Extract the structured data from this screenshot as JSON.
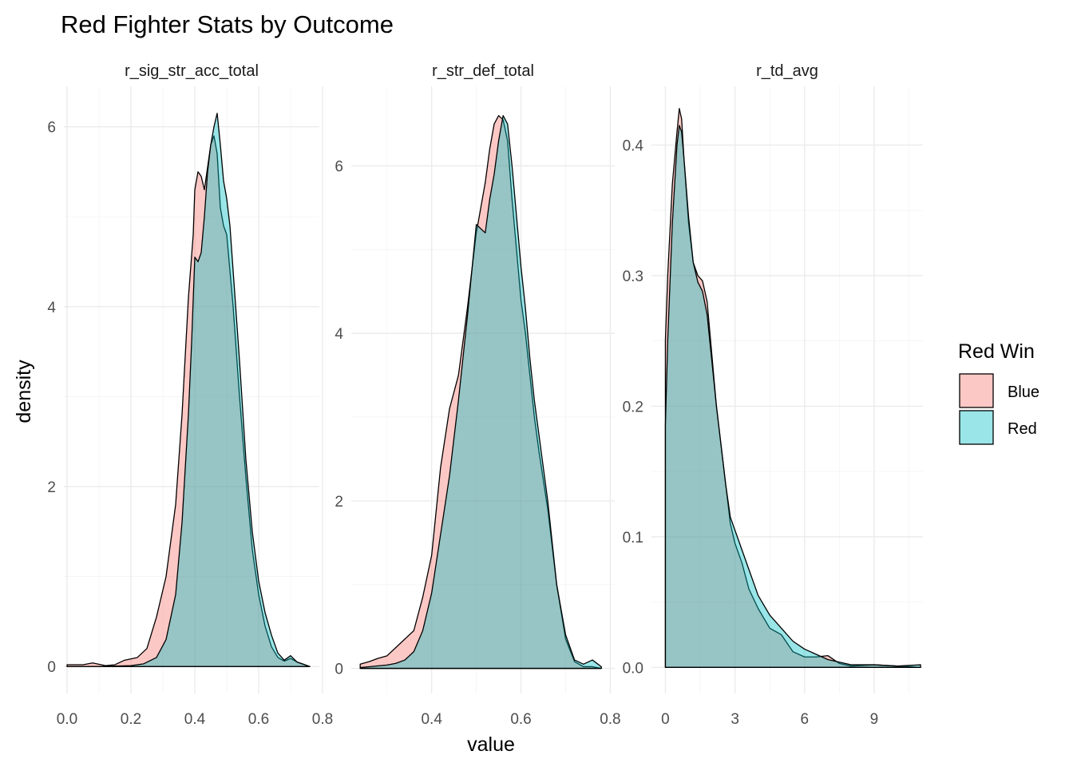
{
  "chart_data": {
    "type": "area",
    "subtype": "density",
    "title": "Red Fighter Stats by Outcome",
    "xlabel": "value",
    "ylabel": "density",
    "legend": {
      "title": "Red Win",
      "position": "right",
      "entries": [
        {
          "name": "Blue",
          "color": "#F8766D"
        },
        {
          "name": "Red",
          "color": "#00BFC4"
        }
      ]
    },
    "fill_alpha": 0.4,
    "grid": true,
    "panels": [
      {
        "strip": "r_sig_str_acc_total",
        "xlim": [
          -0.01,
          0.79
        ],
        "ylim": [
          -0.3,
          6.45
        ],
        "xticks": [
          0.0,
          0.2,
          0.4,
          0.6,
          0.8
        ],
        "xtick_labels": [
          "0.0",
          "0.2",
          "0.4",
          "0.6",
          "0.8"
        ],
        "yticks": [
          0,
          2,
          4,
          6
        ],
        "ytick_labels": [
          "0",
          "2",
          "4",
          "6"
        ],
        "series": [
          {
            "name": "Blue",
            "x": [
              0.0,
              0.05,
              0.08,
              0.12,
              0.15,
              0.18,
              0.22,
              0.25,
              0.28,
              0.31,
              0.34,
              0.36,
              0.38,
              0.395,
              0.4,
              0.41,
              0.42,
              0.43,
              0.44,
              0.45,
              0.46,
              0.47,
              0.48,
              0.49,
              0.5,
              0.52,
              0.54,
              0.56,
              0.58,
              0.6,
              0.62,
              0.64,
              0.66,
              0.68,
              0.7,
              0.72,
              0.76
            ],
            "y": [
              0.02,
              0.02,
              0.04,
              0.01,
              0.02,
              0.07,
              0.1,
              0.2,
              0.55,
              1.0,
              1.8,
              2.8,
              4.1,
              4.8,
              5.3,
              5.5,
              5.45,
              5.3,
              5.55,
              5.8,
              5.9,
              5.7,
              5.1,
              4.9,
              4.8,
              4.0,
              3.0,
              2.1,
              1.3,
              0.8,
              0.45,
              0.22,
              0.1,
              0.06,
              0.09,
              0.05,
              0.0
            ]
          },
          {
            "name": "Red",
            "x": [
              0.0,
              0.1,
              0.2,
              0.24,
              0.28,
              0.31,
              0.34,
              0.36,
              0.38,
              0.39,
              0.4,
              0.41,
              0.42,
              0.43,
              0.44,
              0.45,
              0.46,
              0.47,
              0.48,
              0.49,
              0.5,
              0.51,
              0.52,
              0.54,
              0.56,
              0.58,
              0.6,
              0.62,
              0.64,
              0.66,
              0.68,
              0.7,
              0.72,
              0.76
            ],
            "y": [
              0.0,
              0.0,
              0.01,
              0.03,
              0.1,
              0.3,
              0.8,
              1.6,
              2.8,
              3.6,
              4.55,
              4.5,
              4.6,
              5.0,
              5.5,
              5.8,
              6.0,
              6.15,
              5.8,
              5.4,
              5.2,
              4.9,
              4.4,
              3.4,
              2.3,
              1.5,
              0.95,
              0.6,
              0.35,
              0.15,
              0.07,
              0.12,
              0.05,
              0.0
            ]
          }
        ]
      },
      {
        "strip": "r_str_def_total",
        "xlim": [
          0.22,
          0.81
        ],
        "ylim": [
          -0.3,
          6.95
        ],
        "xticks": [
          0.4,
          0.6,
          0.8
        ],
        "xtick_labels": [
          "0.4",
          "0.6",
          "0.8"
        ],
        "yticks": [
          0,
          2,
          4,
          6
        ],
        "ytick_labels": [
          "0",
          "2",
          "4",
          "6"
        ],
        "series": [
          {
            "name": "Blue",
            "x": [
              0.24,
              0.26,
              0.28,
              0.3,
              0.32,
              0.34,
              0.36,
              0.38,
              0.4,
              0.42,
              0.44,
              0.46,
              0.48,
              0.5,
              0.52,
              0.53,
              0.54,
              0.55,
              0.56,
              0.57,
              0.58,
              0.59,
              0.6,
              0.61,
              0.62,
              0.63,
              0.64,
              0.66,
              0.68,
              0.7,
              0.72,
              0.74,
              0.76,
              0.78
            ],
            "y": [
              0.05,
              0.08,
              0.12,
              0.15,
              0.25,
              0.35,
              0.45,
              0.85,
              1.35,
              2.4,
              3.1,
              3.5,
              4.3,
              5.2,
              5.8,
              6.2,
              6.5,
              6.6,
              6.55,
              6.3,
              5.6,
              5.0,
              4.4,
              4.0,
              3.5,
              3.0,
              2.6,
              1.9,
              1.0,
              0.35,
              0.08,
              0.02,
              0.02,
              0.0
            ]
          },
          {
            "name": "Red",
            "x": [
              0.24,
              0.26,
              0.28,
              0.3,
              0.32,
              0.34,
              0.36,
              0.38,
              0.4,
              0.42,
              0.44,
              0.46,
              0.48,
              0.5,
              0.52,
              0.53,
              0.54,
              0.55,
              0.56,
              0.57,
              0.58,
              0.59,
              0.6,
              0.61,
              0.62,
              0.63,
              0.64,
              0.66,
              0.68,
              0.7,
              0.72,
              0.74,
              0.76,
              0.78
            ],
            "y": [
              0.01,
              0.02,
              0.03,
              0.04,
              0.06,
              0.1,
              0.2,
              0.45,
              0.9,
              1.6,
              2.3,
              3.2,
              4.2,
              5.3,
              5.2,
              5.6,
              5.9,
              6.3,
              6.6,
              6.5,
              6.0,
              5.4,
              4.8,
              4.3,
              3.7,
              3.2,
              2.8,
              2.0,
              1.0,
              0.4,
              0.1,
              0.05,
              0.1,
              0.02
            ]
          }
        ]
      },
      {
        "strip": "r_td_avg",
        "xlim": [
          -0.6,
          11.1
        ],
        "ylim": [
          -0.02,
          0.445
        ],
        "xticks": [
          0,
          3,
          6,
          9
        ],
        "xtick_labels": [
          "0",
          "3",
          "6",
          "9"
        ],
        "yticks": [
          0.0,
          0.1,
          0.2,
          0.3,
          0.4
        ],
        "ytick_labels": [
          "0.0",
          "0.1",
          "0.2",
          "0.3",
          "0.4"
        ],
        "series": [
          {
            "name": "Blue",
            "x": [
              0.0,
              0.1,
              0.3,
              0.5,
              0.6,
              0.7,
              0.8,
              1.0,
              1.2,
              1.4,
              1.6,
              1.8,
              2.0,
              2.2,
              2.4,
              2.6,
              2.8,
              3.0,
              3.3,
              3.6,
              4.0,
              4.5,
              5.0,
              5.5,
              6.0,
              6.5,
              7.0,
              7.5,
              8.0,
              9.0,
              10.0,
              11.0
            ],
            "y": [
              0.25,
              0.3,
              0.37,
              0.41,
              0.428,
              0.42,
              0.39,
              0.34,
              0.31,
              0.3,
              0.296,
              0.28,
              0.24,
              0.2,
              0.17,
              0.14,
              0.11,
              0.095,
              0.08,
              0.06,
              0.045,
              0.03,
              0.025,
              0.012,
              0.008,
              0.008,
              0.009,
              0.003,
              0.001,
              0.002,
              0.001,
              0.0
            ]
          },
          {
            "name": "Red",
            "x": [
              0.0,
              0.1,
              0.3,
              0.5,
              0.6,
              0.7,
              0.8,
              1.0,
              1.2,
              1.4,
              1.6,
              1.8,
              2.0,
              2.2,
              2.4,
              2.6,
              2.8,
              3.0,
              3.3,
              3.6,
              4.0,
              4.5,
              5.0,
              5.5,
              6.0,
              6.5,
              7.0,
              7.5,
              8.0,
              9.0,
              10.0,
              11.0
            ],
            "y": [
              0.185,
              0.25,
              0.34,
              0.4,
              0.415,
              0.41,
              0.39,
              0.345,
              0.31,
              0.295,
              0.288,
              0.27,
              0.235,
              0.2,
              0.17,
              0.14,
              0.115,
              0.105,
              0.09,
              0.075,
              0.055,
              0.04,
              0.03,
              0.02,
              0.014,
              0.01,
              0.006,
              0.004,
              0.002,
              0.002,
              0.001,
              0.002
            ]
          }
        ]
      }
    ]
  }
}
